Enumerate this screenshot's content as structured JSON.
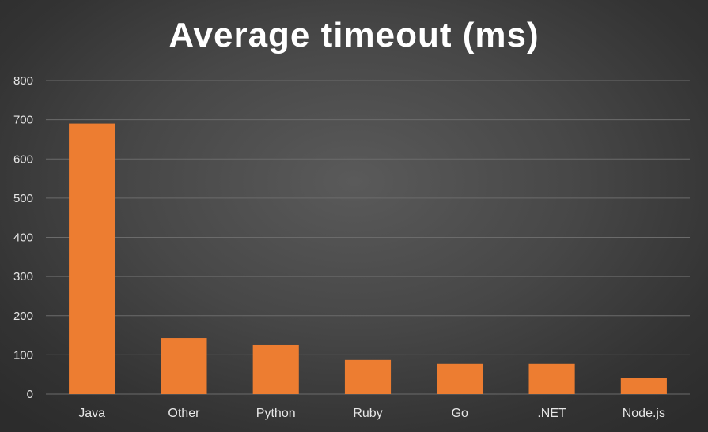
{
  "chart_data": {
    "type": "bar",
    "title": "Average timeout (ms)",
    "categories": [
      "Java",
      "Other",
      "Python",
      "Ruby",
      "Go",
      ".NET",
      "Node.js"
    ],
    "values": [
      690,
      143,
      125,
      87,
      77,
      77,
      41
    ],
    "ylim": [
      0,
      800
    ],
    "yticks": [
      0,
      100,
      200,
      300,
      400,
      500,
      600,
      700,
      800
    ],
    "xlabel": "",
    "ylabel": "",
    "grid": true,
    "legend": "none",
    "colors": {
      "bar": "#ED7D31",
      "grid": "#6b6b6b",
      "text": "#e6e6e6",
      "title": "#ffffff"
    }
  }
}
